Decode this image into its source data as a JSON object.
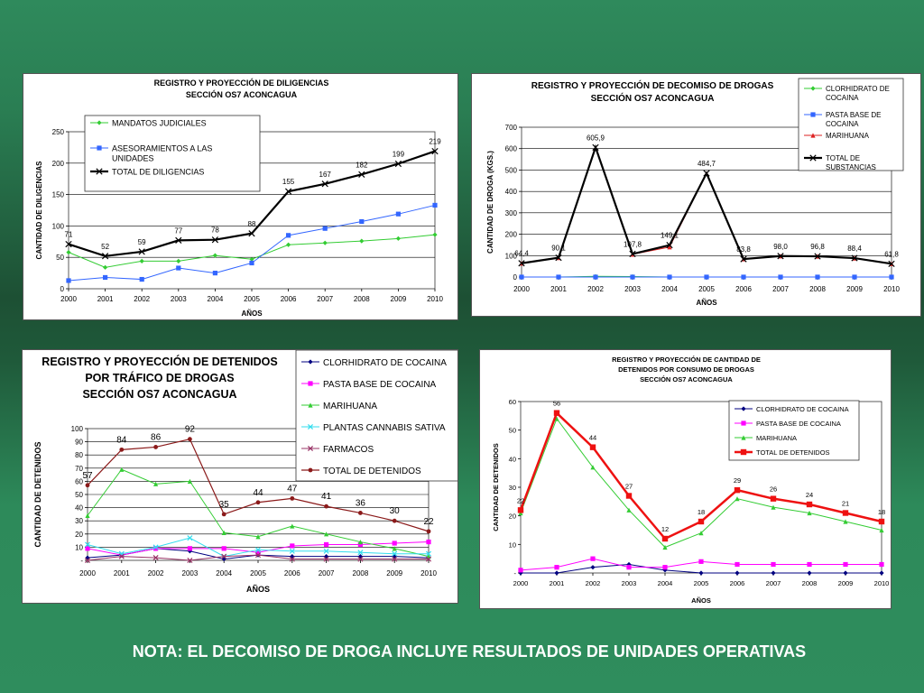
{
  "note": "NOTA: EL DECOMISO DE DROGA INCLUYE RESULTADOS DE UNIDADES OPERATIVAS",
  "chart_data": [
    {
      "type": "line",
      "title": [
        "REGISTRO Y PROYECCIÓN DE DILIGENCIAS",
        "SECCIÓN OS7 ACONCAGUA"
      ],
      "xlabel": "AÑOS",
      "ylabel": "CANTIDAD DE DILIGENCIAS",
      "x": [
        "2000",
        "2001",
        "2002",
        "2003",
        "2004",
        "2005",
        "2006",
        "2007",
        "2008",
        "2009",
        "2010"
      ],
      "ylim": [
        0,
        250
      ],
      "yticks": [
        "0",
        "50",
        "100",
        "150",
        "200",
        "250"
      ],
      "legend_position": "top-left",
      "series": [
        {
          "name": "MANDATOS JUDICIALES",
          "color": "#33cc33",
          "marker": "diamond",
          "width": 1,
          "values": [
            58,
            34,
            44,
            44,
            53,
            47,
            70,
            73,
            76,
            80,
            86
          ]
        },
        {
          "name": "ASESORAMIENTOS A LAS UNIDADES",
          "color": "#3366ff",
          "marker": "square",
          "width": 1,
          "values": [
            13,
            18,
            15,
            33,
            25,
            41,
            85,
            96,
            107,
            119,
            133
          ]
        },
        {
          "name": "TOTAL DE DILIGENCIAS",
          "color": "#000000",
          "marker": "x",
          "width": 2.2,
          "values": [
            71,
            52,
            59,
            77,
            78,
            88,
            155,
            167,
            182,
            199,
            219
          ],
          "labels": [
            "71",
            "52",
            "59",
            "77",
            "78",
            "88",
            "155",
            "167",
            "182",
            "199",
            "219"
          ]
        }
      ]
    },
    {
      "type": "line",
      "title": [
        "REGISTRO Y PROYECCIÓN DE DECOMISO DE DROGAS",
        "SECCIÓN OS7 ACONCAGUA"
      ],
      "xlabel": "AÑOS",
      "ylabel": "CANTIDAD DE DROGA (KGS.)",
      "x": [
        "2000",
        "2001",
        "2002",
        "2003",
        "2004",
        "2005",
        "2006",
        "2007",
        "2008",
        "2009",
        "2010"
      ],
      "ylim": [
        0,
        700
      ],
      "yticks": [
        "0",
        "100",
        "200",
        "300",
        "400",
        "500",
        "600",
        "700"
      ],
      "legend_position": "top-right",
      "series": [
        {
          "name": "CLORHIDRATO DE COCAINA",
          "color": "#33cc33",
          "marker": "diamond",
          "width": 1,
          "values": [
            0,
            0,
            3,
            2,
            0,
            0,
            0,
            0,
            0,
            0,
            0
          ]
        },
        {
          "name": "PASTA BASE DE COCAINA",
          "color": "#3366ff",
          "marker": "square",
          "width": 1,
          "values": [
            0,
            0,
            0,
            0,
            0,
            0,
            0,
            0,
            0,
            0,
            0
          ]
        },
        {
          "name": "MARIHUANA",
          "color": "#dd2222",
          "marker": "triangle",
          "width": 1,
          "values": [
            64,
            90,
            603,
            106,
            140,
            484,
            84,
            98,
            97,
            88,
            62
          ]
        },
        {
          "name": "TOTAL DE SUBSTANCIAS",
          "color": "#000000",
          "marker": "x",
          "width": 2.2,
          "values": [
            64.4,
            90.1,
            605.9,
            107.8,
            149.1,
            484.7,
            83.8,
            98.0,
            96.8,
            88.4,
            61.8
          ],
          "labels": [
            "64,4",
            "90,1",
            "605,9",
            "107,8",
            "149,1",
            "484,7",
            "83,8",
            "98,0",
            "96,8",
            "88,4",
            "61,8"
          ]
        }
      ]
    },
    {
      "type": "line",
      "title": [
        "REGISTRO Y PROYECCIÓN DE DETENIDOS",
        "POR TRÁFICO DE DROGAS",
        "SECCIÓN OS7 ACONCAGUA"
      ],
      "xlabel": "AÑOS",
      "ylabel": "CANTIDAD DE DETENIDOS",
      "x": [
        "2000",
        "2001",
        "2002",
        "2003",
        "2004",
        "2005",
        "2006",
        "2007",
        "2008",
        "2009",
        "2010"
      ],
      "ylim": [
        0,
        100
      ],
      "yticks": [
        "-",
        "10",
        "20",
        "30",
        "40",
        "50",
        "60",
        "70",
        "80",
        "90",
        "100"
      ],
      "legend_position": "top-right",
      "series": [
        {
          "name": "CLORHIDRATO DE COCAINA",
          "color": "#000080",
          "marker": "diamond",
          "width": 1,
          "values": [
            2,
            4,
            9,
            7,
            1,
            4,
            3,
            3,
            3,
            3,
            2
          ]
        },
        {
          "name": "PASTA BASE DE COCAINA",
          "color": "#ff00ff",
          "marker": "square",
          "width": 1,
          "values": [
            9,
            4,
            9,
            9,
            9,
            6,
            11,
            12,
            12,
            13,
            14
          ]
        },
        {
          "name": "MARIHUANA",
          "color": "#33cc33",
          "marker": "triangle",
          "width": 1,
          "values": [
            34,
            69,
            58,
            60,
            21,
            18,
            26,
            20,
            14,
            9,
            3
          ]
        },
        {
          "name": "PLANTAS CANNABIS SATIVA",
          "color": "#33ddee",
          "marker": "x",
          "width": 1,
          "values": [
            12,
            5,
            10,
            17,
            3,
            8,
            7,
            7,
            6,
            5,
            5
          ]
        },
        {
          "name": "FARMACOS",
          "color": "#993366",
          "marker": "x",
          "width": 1,
          "values": [
            0,
            3,
            2,
            0,
            3,
            4,
            1,
            1,
            1,
            1,
            1
          ]
        },
        {
          "name": "TOTAL DE DETENIDOS",
          "color": "#8b1a1a",
          "marker": "circle",
          "width": 1.2,
          "values": [
            57,
            84,
            86,
            92,
            35,
            44,
            47,
            41,
            36,
            30,
            22
          ],
          "labels": [
            "57",
            "84",
            "86",
            "92",
            "35",
            "44",
            "47",
            "41",
            "36",
            "30",
            "22"
          ]
        }
      ]
    },
    {
      "type": "line",
      "title": [
        "REGISTRO Y PROYECCIÓN DE CANTIDAD DE",
        "DETENIDOS POR CONSUMO DE DROGAS",
        "SECCIÓN OS7 ACONCAGUA"
      ],
      "xlabel": "AÑOS",
      "ylabel": "CANTIDAD DE DETENIDOS",
      "x": [
        "2000",
        "2001",
        "2002",
        "2003",
        "2004",
        "2005",
        "2006",
        "2007",
        "2008",
        "2009",
        "2010"
      ],
      "ylim": [
        0,
        60
      ],
      "yticks": [
        "-",
        "10",
        "20",
        "30",
        "40",
        "50",
        "60"
      ],
      "legend_position": "top-right",
      "series": [
        {
          "name": "CLORHIDRATO DE COCAINA",
          "color": "#000080",
          "marker": "diamond",
          "width": 1,
          "values": [
            0,
            0,
            2,
            3,
            1,
            0,
            0,
            0,
            0,
            0,
            0
          ]
        },
        {
          "name": "PASTA BASE DE COCAINA",
          "color": "#ff00ff",
          "marker": "square",
          "width": 1,
          "values": [
            1,
            2,
            5,
            2,
            2,
            4,
            3,
            3,
            3,
            3,
            3
          ]
        },
        {
          "name": "MARIHUANA",
          "color": "#33cc33",
          "marker": "triangle",
          "width": 1,
          "values": [
            21,
            54,
            37,
            22,
            9,
            14,
            26,
            23,
            21,
            18,
            15
          ]
        },
        {
          "name": "TOTAL DE DETENIDOS",
          "color": "#ee1111",
          "marker": "square",
          "width": 2.5,
          "values": [
            22,
            56,
            44,
            27,
            12,
            18,
            29,
            26,
            24,
            21,
            18
          ],
          "labels": [
            "22",
            "56",
            "44",
            "27",
            "12",
            "18",
            "29",
            "26",
            "24",
            "21",
            "18"
          ]
        }
      ]
    }
  ]
}
